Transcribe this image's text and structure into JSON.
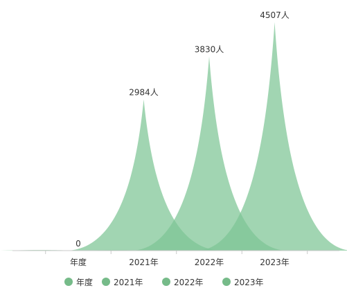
{
  "chart_data": {
    "type": "area",
    "categories": [
      "年度",
      "2021年",
      "2022年",
      "2023年"
    ],
    "values": [
      0,
      2984,
      3830,
      4507
    ],
    "data_labels": [
      "0",
      "2984人",
      "3830人",
      "4507人"
    ],
    "unit": "人",
    "ylim": [
      0,
      4507
    ],
    "grid": false,
    "legend_placement": "bottom",
    "legend": [
      "年度",
      "2021年",
      "2022年",
      "2023年"
    ],
    "colors": {
      "fill": "#7dc594",
      "legend_marker": "#76bb89",
      "axis": "#c8c8c8",
      "text": "#333333"
    }
  }
}
